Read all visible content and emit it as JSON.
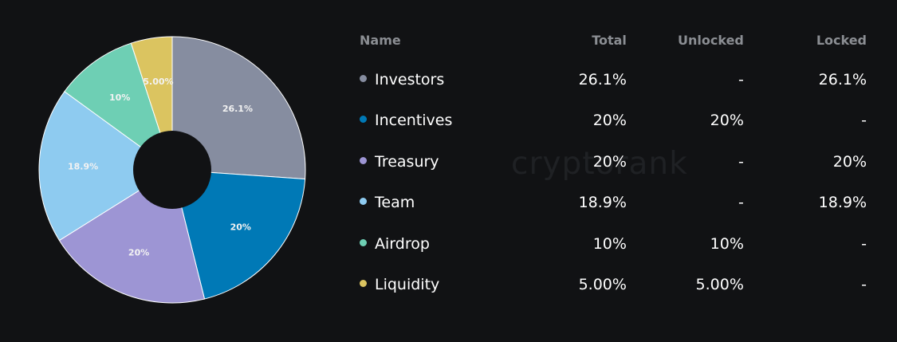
{
  "watermark": "cryptorank",
  "table": {
    "headers": {
      "name": "Name",
      "total": "Total",
      "unlocked": "Unlocked",
      "locked": "Locked"
    },
    "rows": [
      {
        "name": "Investors",
        "color": "#868da0",
        "total": "26.1%",
        "unlocked": "-",
        "locked": "26.1%"
      },
      {
        "name": "Incentives",
        "color": "#0079b6",
        "total": "20%",
        "unlocked": "20%",
        "locked": "-"
      },
      {
        "name": "Treasury",
        "color": "#9d95d4",
        "total": "20%",
        "unlocked": "-",
        "locked": "20%"
      },
      {
        "name": "Team",
        "color": "#8ecbf0",
        "total": "18.9%",
        "unlocked": "-",
        "locked": "18.9%"
      },
      {
        "name": "Airdrop",
        "color": "#6ecfb4",
        "total": "10%",
        "unlocked": "10%",
        "locked": "-"
      },
      {
        "name": "Liquidity",
        "color": "#dbc460",
        "total": "5.00%",
        "unlocked": "5.00%",
        "locked": "-"
      }
    ]
  },
  "chart_data": {
    "type": "pie",
    "donut": true,
    "categories": [
      "Investors",
      "Incentives",
      "Treasury",
      "Team",
      "Airdrop",
      "Liquidity"
    ],
    "values": [
      26.1,
      20,
      20,
      18.9,
      10,
      5.0
    ],
    "labels": [
      "26.1%",
      "20%",
      "20%",
      "18.9%",
      "10%",
      "5.00%"
    ],
    "colors": [
      "#868da0",
      "#0079b6",
      "#9d95d4",
      "#8ecbf0",
      "#6ecfb4",
      "#dbc460"
    ],
    "start": "12 o'clock",
    "direction": "clockwise",
    "legend": "right"
  }
}
